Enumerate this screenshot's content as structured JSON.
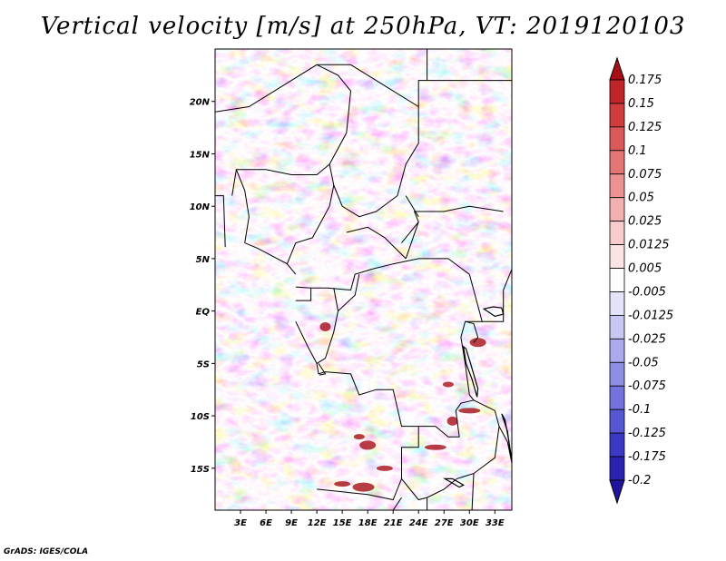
{
  "title": "Vertical velocity [m/s] at 250hPa, VT: 2019120103",
  "credit": "GrADS: IGES/COLA",
  "map": {
    "variable": "Vertical velocity",
    "units": "m/s",
    "level": "250hPa",
    "valid_time": "2019120103",
    "lon_range": [
      0,
      35
    ],
    "lat_range": [
      -19,
      25
    ],
    "lon_ticks": [
      {
        "value": 3,
        "label": "3E"
      },
      {
        "value": 6,
        "label": "6E"
      },
      {
        "value": 9,
        "label": "9E"
      },
      {
        "value": 12,
        "label": "12E"
      },
      {
        "value": 15,
        "label": "15E"
      },
      {
        "value": 18,
        "label": "18E"
      },
      {
        "value": 21,
        "label": "21E"
      },
      {
        "value": 24,
        "label": "24E"
      },
      {
        "value": 27,
        "label": "27E"
      },
      {
        "value": 30,
        "label": "30E"
      },
      {
        "value": 33,
        "label": "33E"
      }
    ],
    "lat_ticks": [
      {
        "value": 20,
        "label": "20N"
      },
      {
        "value": 15,
        "label": "15N"
      },
      {
        "value": 10,
        "label": "10N"
      },
      {
        "value": 5,
        "label": "5N"
      },
      {
        "value": 0,
        "label": "EQ"
      },
      {
        "value": -5,
        "label": "5S"
      },
      {
        "value": -10,
        "label": "10S"
      },
      {
        "value": -15,
        "label": "15S"
      }
    ]
  },
  "colorbar": {
    "labels": [
      "0.175",
      "0.15",
      "0.125",
      "0.1",
      "0.075",
      "0.05",
      "0.025",
      "0.0125",
      "0.005",
      "-0.005",
      "-0.0125",
      "-0.025",
      "-0.05",
      "-0.075",
      "-0.1",
      "-0.125",
      "-0.175",
      "-0.2"
    ],
    "colors": [
      "#a50f15",
      "#c0252a",
      "#d13c3c",
      "#dc5959",
      "#e47575",
      "#ec9292",
      "#f3b0b0",
      "#f8cccc",
      "#fce4e4",
      "#ffffff",
      "#e2e2fa",
      "#c8c8f3",
      "#abaaee",
      "#8f8ee6",
      "#7372de",
      "#5756d3",
      "#3a38c4",
      "#2a23b0",
      "#1e159c"
    ],
    "top_color": "#a50f15",
    "bottom_color": "#1e159c"
  },
  "colors": {
    "positive": "#d13c3c",
    "negative": "#5756d3",
    "border": "#000000"
  }
}
